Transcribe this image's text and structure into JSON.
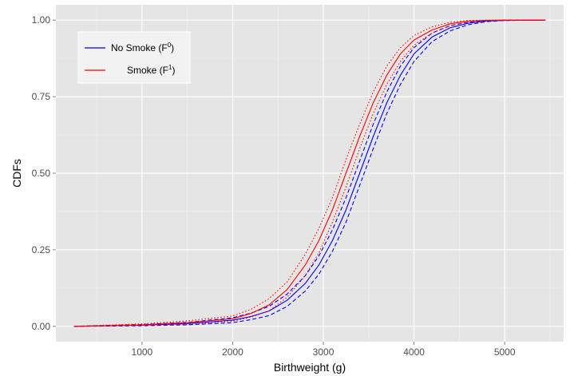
{
  "chart_data": {
    "type": "line",
    "title": "",
    "xlabel": "Birthweight (g)",
    "ylabel": "CDFs",
    "xlim": [
      50,
      5650
    ],
    "ylim": [
      -0.05,
      1.05
    ],
    "x_ticks": [
      1000,
      2000,
      3000,
      4000,
      5000
    ],
    "y_ticks": [
      0.0,
      0.25,
      0.5,
      0.75,
      1.0
    ],
    "x_tick_labels": [
      "1000",
      "2000",
      "3000",
      "4000",
      "5000"
    ],
    "y_tick_labels": [
      "0.00",
      "0.25",
      "0.50",
      "0.75",
      "1.00"
    ],
    "grid": true,
    "legend_position": "top-left",
    "legend": [
      {
        "label": "No Smoke (F",
        "sup": "0",
        "suffix": ")",
        "color": "#0000ff"
      },
      {
        "label": "Smoke (F",
        "sup": "1",
        "suffix": ")",
        "color": "#ff0000"
      }
    ],
    "series": [
      {
        "name": "No Smoke (F0)",
        "style": "solid",
        "color": "#0000ff",
        "x": [
          250,
          1000,
          1500,
          2000,
          2200,
          2400,
          2600,
          2800,
          2950,
          3100,
          3250,
          3400,
          3550,
          3700,
          3850,
          4000,
          4200,
          4400,
          4600,
          4800,
          5000,
          5450
        ],
        "y": [
          0.0,
          0.004,
          0.009,
          0.02,
          0.032,
          0.05,
          0.085,
          0.14,
          0.2,
          0.28,
          0.38,
          0.5,
          0.62,
          0.73,
          0.82,
          0.89,
          0.945,
          0.975,
          0.99,
          0.997,
          0.999,
          1.0
        ]
      },
      {
        "name": "",
        "style": "dashed",
        "color": "#0000ff",
        "x": [
          250,
          1000,
          1500,
          2000,
          2200,
          2400,
          2600,
          2800,
          2950,
          3100,
          3250,
          3400,
          3550,
          3700,
          3850,
          4000,
          4200,
          4400,
          4600,
          4800,
          5000,
          5450
        ],
        "y": [
          0.0,
          0.006,
          0.013,
          0.028,
          0.043,
          0.065,
          0.105,
          0.165,
          0.23,
          0.315,
          0.42,
          0.54,
          0.66,
          0.765,
          0.85,
          0.91,
          0.958,
          0.982,
          0.993,
          0.998,
          1.0,
          1.0
        ]
      },
      {
        "name": "",
        "style": "dashed",
        "color": "#0000ff",
        "x": [
          250,
          1000,
          1500,
          2000,
          2200,
          2400,
          2600,
          2800,
          2950,
          3100,
          3250,
          3400,
          3550,
          3700,
          3850,
          4000,
          4200,
          4400,
          4600,
          4800,
          5000,
          5450
        ],
        "y": [
          0.0,
          0.002,
          0.005,
          0.012,
          0.022,
          0.035,
          0.065,
          0.115,
          0.17,
          0.245,
          0.34,
          0.46,
          0.58,
          0.695,
          0.79,
          0.865,
          0.93,
          0.965,
          0.985,
          0.995,
          0.999,
          1.0
        ]
      },
      {
        "name": "Smoke (F1)",
        "style": "solid",
        "color": "#ff0000",
        "x": [
          250,
          1000,
          1500,
          2000,
          2200,
          2400,
          2600,
          2800,
          2950,
          3100,
          3250,
          3400,
          3550,
          3700,
          3850,
          4000,
          4200,
          4400,
          4600,
          4800,
          5000,
          5450
        ],
        "y": [
          0.0,
          0.005,
          0.012,
          0.025,
          0.042,
          0.07,
          0.12,
          0.2,
          0.28,
          0.38,
          0.5,
          0.62,
          0.73,
          0.82,
          0.89,
          0.935,
          0.968,
          0.988,
          0.997,
          0.999,
          1.0,
          1.0
        ]
      },
      {
        "name": "",
        "style": "dotted",
        "color": "#ff0000",
        "x": [
          250,
          1000,
          1500,
          2000,
          2200,
          2400,
          2600,
          2800,
          2950,
          3100,
          3250,
          3400,
          3550,
          3700,
          3850,
          4000,
          4200,
          4400,
          4600,
          4800,
          5000,
          5450
        ],
        "y": [
          0.0,
          0.008,
          0.018,
          0.034,
          0.055,
          0.09,
          0.145,
          0.235,
          0.32,
          0.42,
          0.545,
          0.66,
          0.765,
          0.85,
          0.91,
          0.95,
          0.978,
          0.993,
          0.999,
          1.0,
          1.0,
          1.0
        ]
      },
      {
        "name": "",
        "style": "dotted",
        "color": "#ff0000",
        "x": [
          250,
          1000,
          1500,
          2000,
          2200,
          2400,
          2600,
          2800,
          2950,
          3100,
          3250,
          3400,
          3550,
          3700,
          3850,
          4000,
          4200,
          4400,
          4600,
          4800,
          5000,
          5450
        ],
        "y": [
          0.0,
          0.003,
          0.007,
          0.017,
          0.03,
          0.05,
          0.095,
          0.165,
          0.24,
          0.34,
          0.455,
          0.58,
          0.695,
          0.79,
          0.865,
          0.918,
          0.958,
          0.982,
          0.994,
          0.998,
          1.0,
          1.0
        ]
      }
    ]
  }
}
